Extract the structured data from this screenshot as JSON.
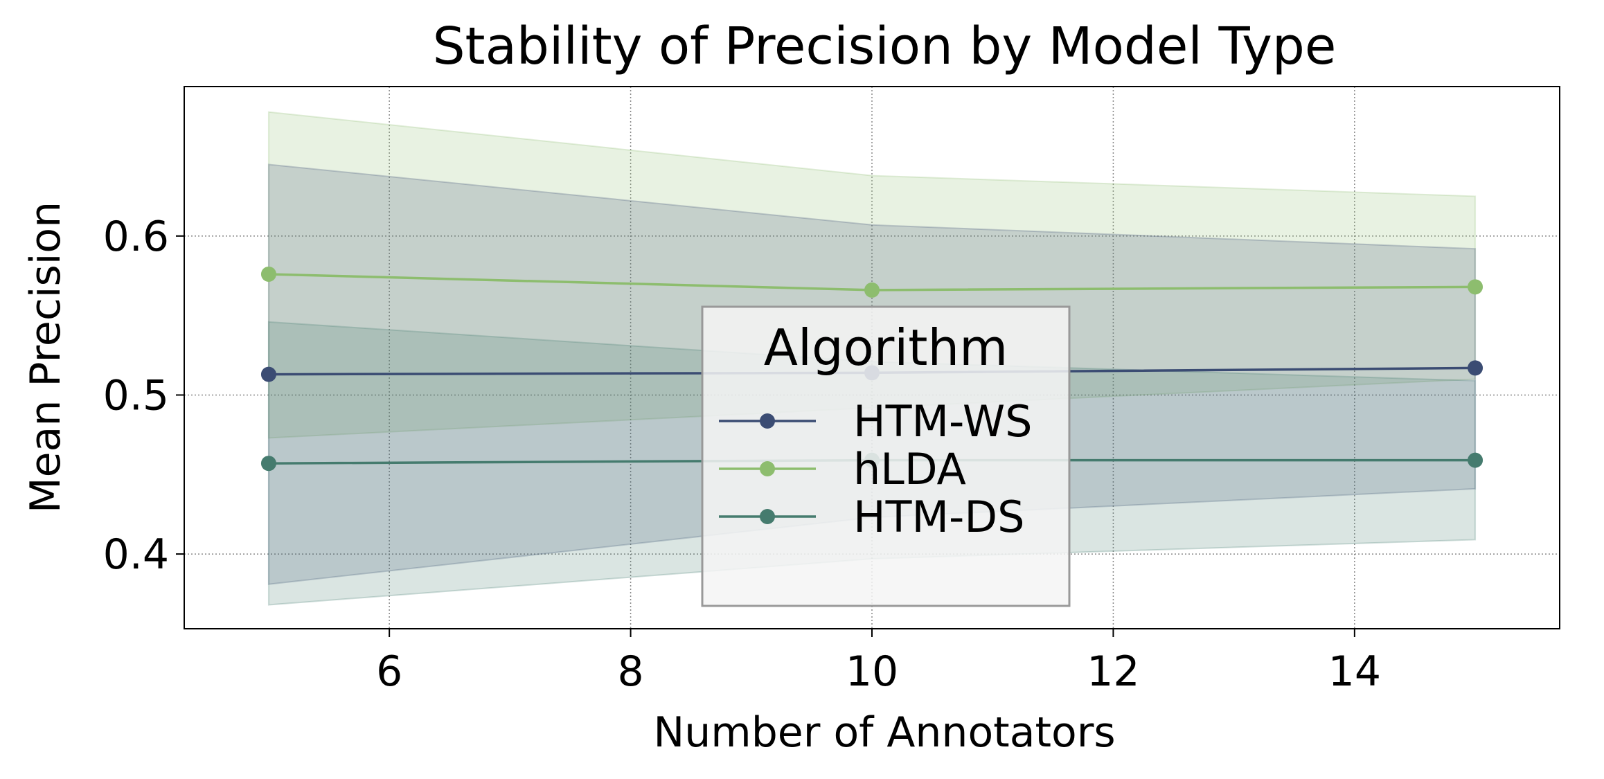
{
  "chart_data": {
    "type": "line",
    "title": "Stability of Precision by Model Type",
    "xlabel": "Number of Annotators",
    "ylabel": "Mean Precision",
    "x": [
      5,
      10,
      15
    ],
    "xlim": [
      4.3,
      15.7
    ],
    "ylim": [
      0.353,
      0.694
    ],
    "xticks": [
      6,
      8,
      10,
      12,
      14
    ],
    "yticks": [
      0.4,
      0.5,
      0.6
    ],
    "xtick_labels": [
      "6",
      "8",
      "10",
      "12",
      "14"
    ],
    "ytick_labels": [
      "0.4",
      "0.5",
      "0.6"
    ],
    "grid": true,
    "legend": {
      "title": "Algorithm",
      "placement": "center-bottom"
    },
    "series": [
      {
        "name": "HTM-WS",
        "color": "#3b4c73",
        "values": [
          0.513,
          0.514,
          0.517
        ],
        "lower": [
          0.381,
          0.423,
          0.441
        ],
        "upper": [
          0.645,
          0.607,
          0.592
        ]
      },
      {
        "name": "hLDA",
        "color": "#8dbd6e",
        "values": [
          0.576,
          0.566,
          0.568
        ],
        "lower": [
          0.473,
          0.492,
          0.51
        ],
        "upper": [
          0.678,
          0.638,
          0.625
        ]
      },
      {
        "name": "HTM-DS",
        "color": "#457b6e",
        "values": [
          0.457,
          0.459,
          0.459
        ],
        "lower": [
          0.368,
          0.397,
          0.409
        ],
        "upper": [
          0.546,
          0.521,
          0.509
        ]
      }
    ]
  }
}
